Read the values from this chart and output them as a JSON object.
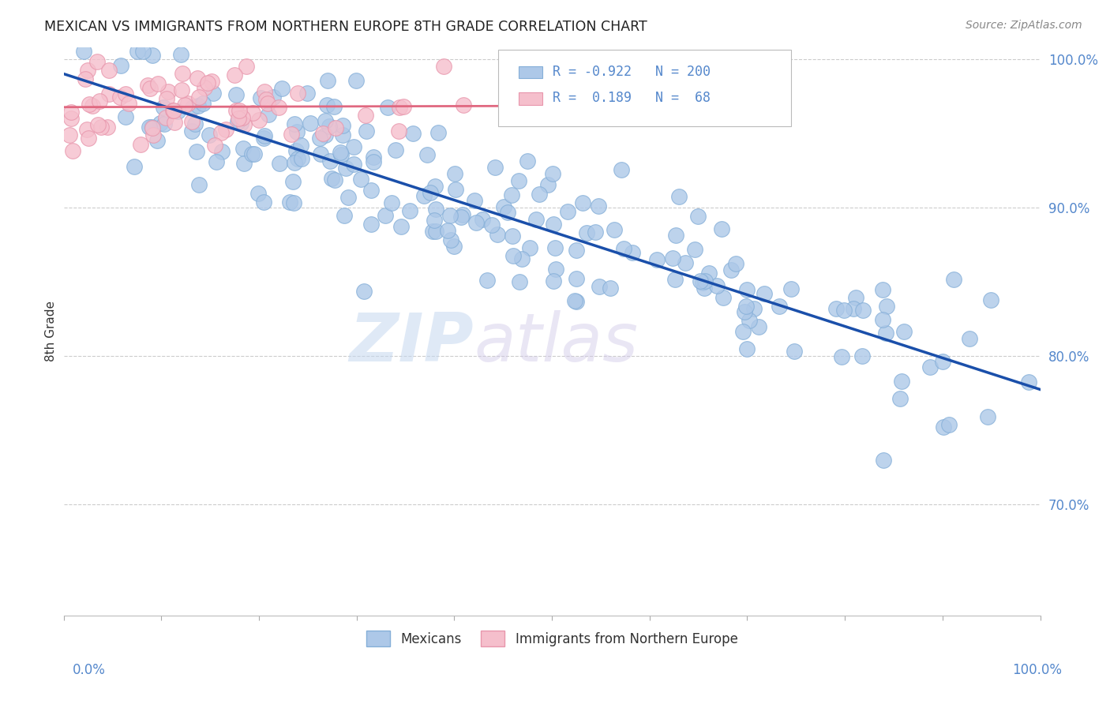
{
  "title": "MEXICAN VS IMMIGRANTS FROM NORTHERN EUROPE 8TH GRADE CORRELATION CHART",
  "source": "Source: ZipAtlas.com",
  "ylabel": "8th Grade",
  "blue_R": -0.922,
  "blue_N": 200,
  "pink_R": 0.189,
  "pink_N": 68,
  "blue_color": "#adc8e8",
  "blue_edge": "#85afd8",
  "pink_color": "#f5bfcc",
  "pink_edge": "#e896ac",
  "blue_line_color": "#1a4faa",
  "pink_line_color": "#e06880",
  "legend_blue_label": "Mexicans",
  "legend_pink_label": "Immigrants from Northern Europe",
  "watermark_zip": "ZIP",
  "watermark_atlas": "atlas",
  "background_color": "#ffffff",
  "grid_color": "#cccccc",
  "xmin": 0.0,
  "xmax": 1.0,
  "ymin": 0.625,
  "ymax": 1.008,
  "yticks": [
    0.7,
    0.8,
    0.9,
    1.0
  ],
  "ytick_labels": [
    "70.0%",
    "80.0%",
    "90.0%",
    "100.0%"
  ],
  "tick_color": "#5588cc",
  "axis_label_color": "#333333",
  "title_color": "#222222",
  "source_color": "#888888"
}
